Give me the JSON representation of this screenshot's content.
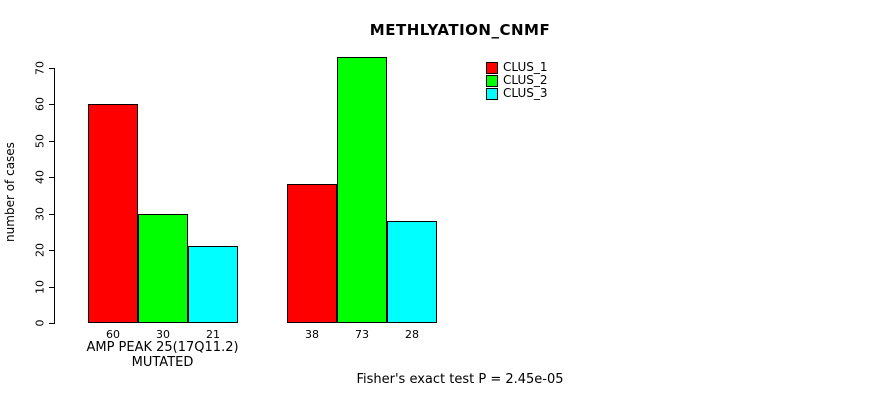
{
  "chart_data": {
    "type": "bar",
    "title": "METHLYATION_CNMF",
    "ylabel": "number of cases",
    "xlabel": "AMP PEAK 25(17Q11.2) MUTATED",
    "annotation": "Fisher's exact test P = 2.45e-05",
    "categories": [
      "AMP PEAK 25(17Q11.2) MUTATED",
      ""
    ],
    "series": [
      {
        "name": "CLUS_1",
        "color": "#ff0000",
        "values": [
          60,
          38
        ]
      },
      {
        "name": "CLUS_2",
        "color": "#00ff00",
        "values": [
          30,
          73
        ]
      },
      {
        "name": "CLUS_3",
        "color": "#00ffff",
        "values": [
          21,
          28
        ]
      }
    ],
    "y_ticks": [
      0,
      10,
      20,
      30,
      40,
      50,
      60,
      70
    ],
    "ylim": [
      0,
      73
    ],
    "grid": false,
    "legend_position": "top-right",
    "bar_value_labels": true
  }
}
